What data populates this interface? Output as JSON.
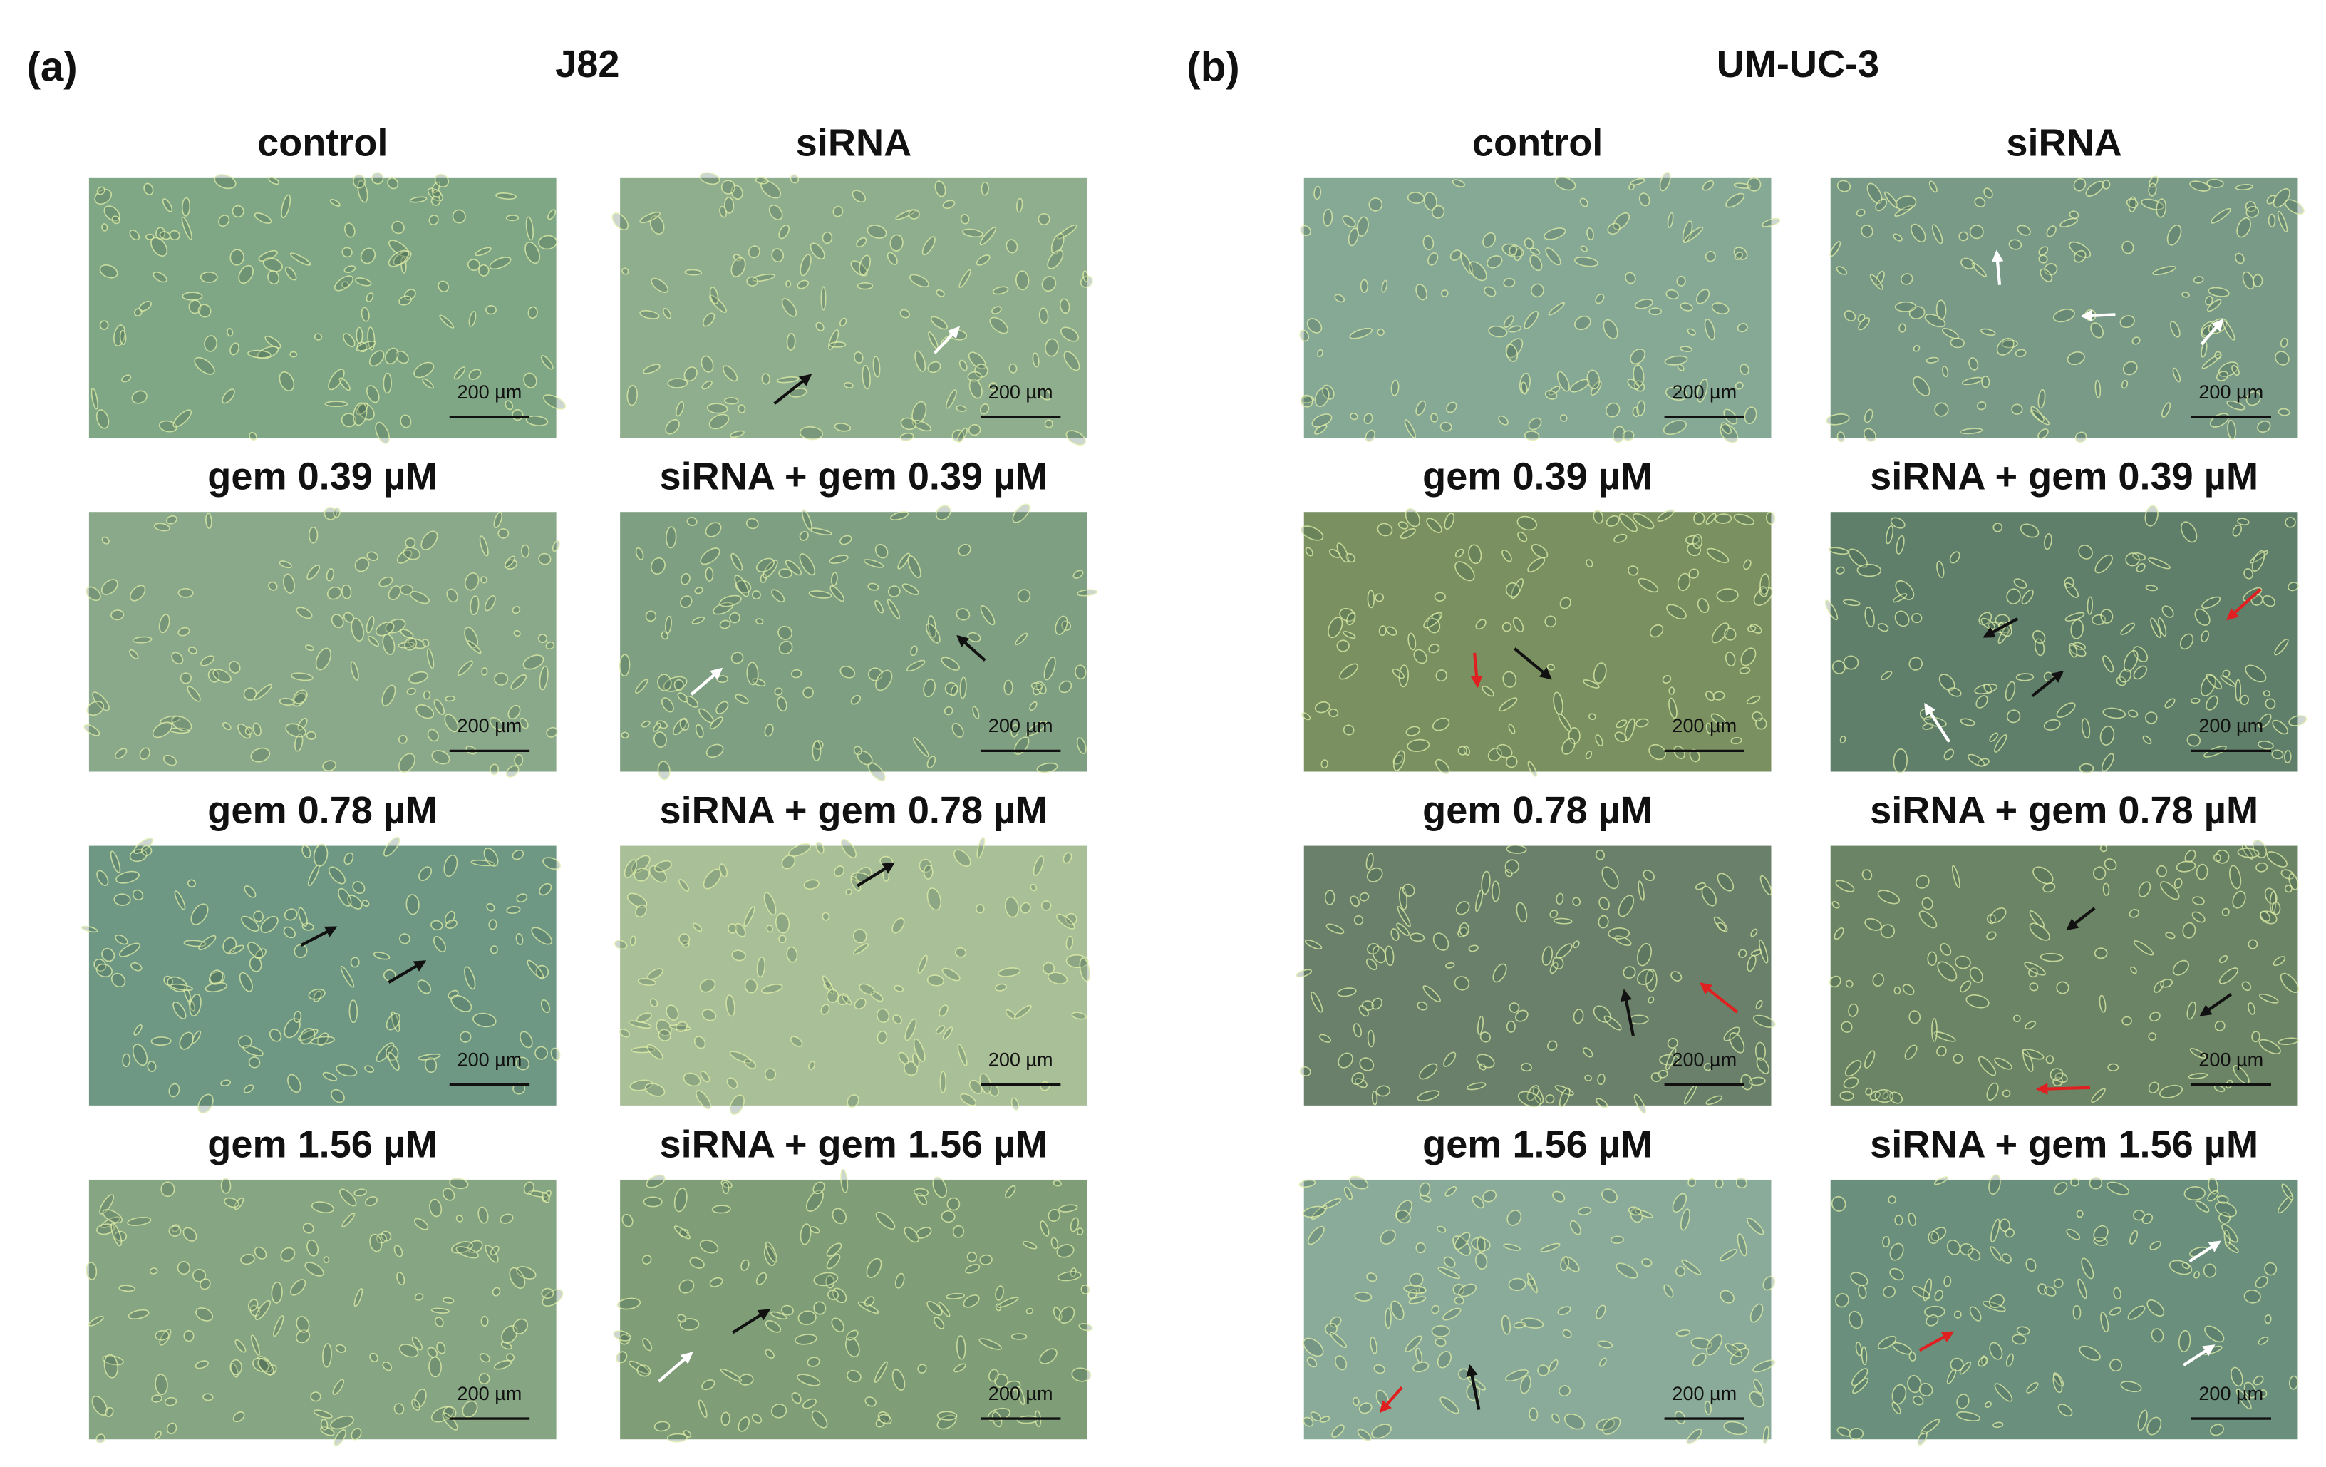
{
  "panels": [
    {
      "letter": "(a)",
      "title": "J82",
      "images": [
        {
          "label": "control",
          "scale_bar": "200 µm"
        },
        {
          "label": "siRNA",
          "scale_bar": "200 µm"
        },
        {
          "label": "gem 0.39 µM",
          "scale_bar": "200 µm"
        },
        {
          "label": "siRNA + gem 0.39 µM",
          "scale_bar": "200 µm"
        },
        {
          "label": "gem 0.78 µM",
          "scale_bar": "200 µm"
        },
        {
          "label": "siRNA + gem 0.78 µM",
          "scale_bar": "200 µm"
        },
        {
          "label": "gem 1.56 µM",
          "scale_bar": "200 µm"
        },
        {
          "label": "siRNA + gem 1.56 µM",
          "scale_bar": "200 µm"
        }
      ]
    },
    {
      "letter": "(b)",
      "title": "UM-UC-3",
      "images": [
        {
          "label": "control",
          "scale_bar": "200 µm"
        },
        {
          "label": "siRNA",
          "scale_bar": "200 µm"
        },
        {
          "label": "gem 0.39 µM",
          "scale_bar": "200 µm"
        },
        {
          "label": "siRNA + gem 0.39 µM",
          "scale_bar": "200 µm"
        },
        {
          "label": "gem 0.78 µM",
          "scale_bar": "200 µm"
        },
        {
          "label": "siRNA + gem 0.78 µM",
          "scale_bar": "200 µm"
        },
        {
          "label": "gem 1.56 µM",
          "scale_bar": "200 µm"
        },
        {
          "label": "siRNA + gem 1.56 µM",
          "scale_bar": "200 µm"
        }
      ]
    }
  ]
}
